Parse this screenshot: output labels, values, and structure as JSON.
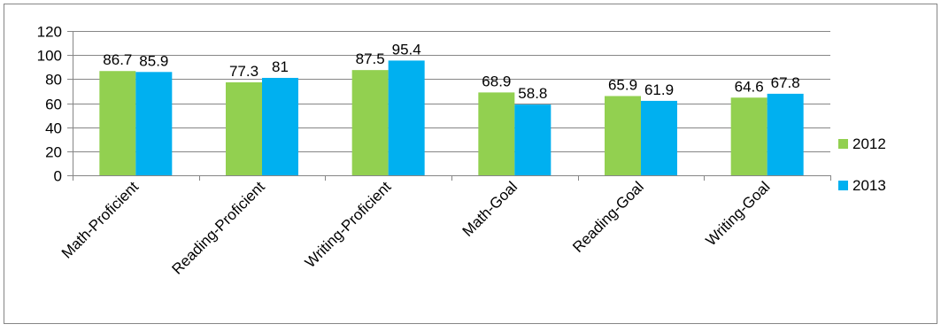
{
  "chart_data": {
    "type": "bar",
    "categories": [
      "Math-Proficient",
      "Reading-Proficient",
      "Writing-Proficient",
      "Math-Goal",
      "Reading-Goal",
      "Writing-Goal"
    ],
    "series": [
      {
        "name": "2012",
        "values": [
          86.7,
          77.3,
          87.5,
          68.9,
          65.9,
          64.6
        ],
        "color": "#92d050"
      },
      {
        "name": "2013",
        "values": [
          85.9,
          81,
          95.4,
          58.8,
          61.9,
          67.8
        ],
        "color": "#00b0f0"
      }
    ],
    "data_labels": [
      [
        "86.7",
        "77.3",
        "87.5",
        "68.9",
        "65.9",
        "64.6"
      ],
      [
        "85.9",
        "81",
        "95.4",
        "58.8",
        "61.9",
        "67.8"
      ]
    ],
    "title": "",
    "xlabel": "",
    "ylabel": "",
    "ylim": [
      0,
      120
    ],
    "yticks": [
      0,
      20,
      40,
      60,
      80,
      100,
      120
    ],
    "grid": true,
    "legend_position": "right",
    "gridline_color": "#868686",
    "axis_color": "#868686",
    "frame_color": "#868686"
  }
}
